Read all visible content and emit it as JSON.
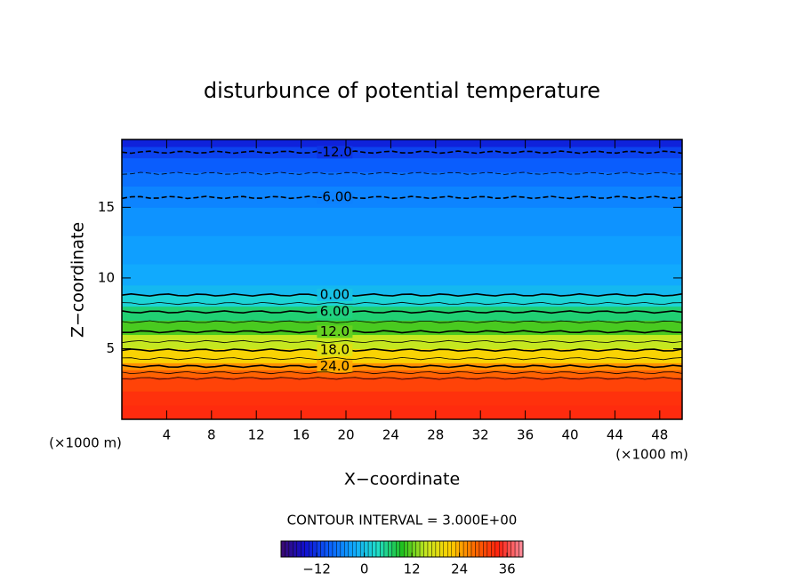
{
  "chart_data": {
    "type": "contour",
    "title": "disturbunce of potential temperature",
    "xlabel": "X−coordinate",
    "ylabel": "Z−coordinate",
    "x_unit": "(×1000 m)",
    "y_unit": "(×1000 m)",
    "xlim": [
      0,
      50
    ],
    "xticks": [
      4,
      8,
      12,
      16,
      20,
      24,
      28,
      32,
      36,
      40,
      44,
      48
    ],
    "ylim": [
      0,
      19.8
    ],
    "yticks": [
      5,
      10,
      15
    ],
    "profile": {
      "z": [
        0,
        1,
        2,
        3,
        3.5,
        4,
        5,
        6,
        7,
        8,
        8.8,
        9.5,
        11,
        13,
        15,
        16.5,
        17.5,
        18.5,
        19.3,
        19.8
      ],
      "values": [
        33,
        33,
        32,
        30,
        27,
        24,
        18,
        13,
        9,
        4,
        0,
        -2,
        -3,
        -4,
        -5,
        -6.5,
        -8,
        -10,
        -12,
        -15
      ]
    },
    "contours": [
      {
        "level": -12,
        "label": "-12.0",
        "z": 18.9
      },
      {
        "level": -9,
        "z": 17.4
      },
      {
        "level": -6,
        "label": "-6.00",
        "z": 15.7
      },
      {
        "level": 0,
        "label": "0.00",
        "z": 8.8
      },
      {
        "level": 3,
        "z": 8.2
      },
      {
        "level": 6,
        "label": "6.00",
        "z": 7.6
      },
      {
        "level": 9,
        "z": 6.9
      },
      {
        "level": 12,
        "label": "12.0",
        "z": 6.2
      },
      {
        "level": 15,
        "z": 5.5
      },
      {
        "level": 18,
        "label": "18.0",
        "z": 4.9
      },
      {
        "level": 21,
        "z": 4.3
      },
      {
        "level": 24,
        "label": "24.0",
        "z": 3.75
      },
      {
        "level": 27,
        "z": 3.3
      },
      {
        "level": 30,
        "z": 2.9
      }
    ],
    "contour_label_x": 19,
    "contour_interval": "CONTOUR INTERVAL = 3.000E+00",
    "clim": [
      -21,
      40
    ],
    "cticks": [
      {
        "value": -12,
        "label": "−12"
      },
      0,
      12,
      24,
      36
    ],
    "colormap": [
      "#3a0a6e",
      "#1010d0",
      "#0a60ff",
      "#10a8ff",
      "#20e0c8",
      "#20c020",
      "#c8e820",
      "#ffd000",
      "#ff6a00",
      "#ff2010",
      "#ff90a0"
    ]
  }
}
